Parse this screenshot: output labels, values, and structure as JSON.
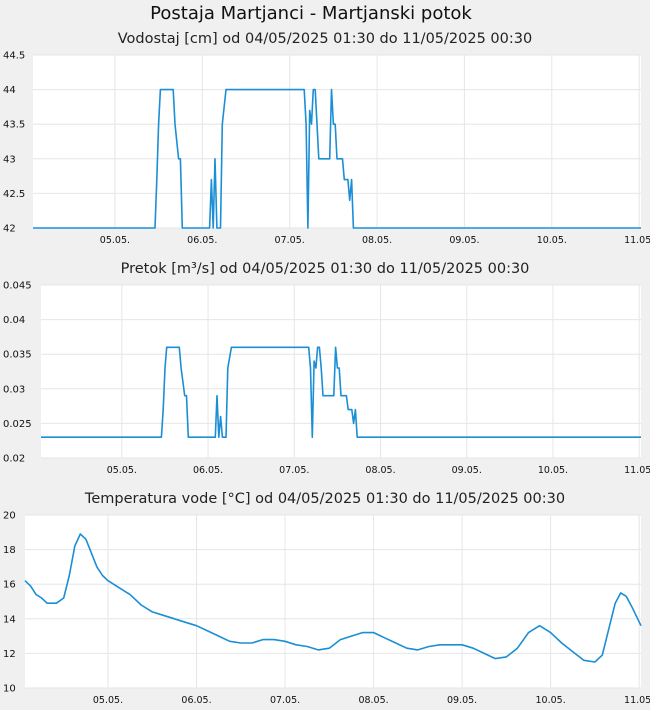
{
  "page": {
    "title": "Postaja Martjanci - Martjanski potok"
  },
  "colors": {
    "line": "#1a8fd6",
    "grid": "#e6e6e6",
    "plot_bg": "#ffffff",
    "page_bg": "#f0f0f0"
  },
  "chart_data": [
    {
      "id": "vodostaj",
      "type": "line",
      "title": "Vodostaj [cm] od 04/05/2025 01:30 do 11/05/2025 00:30",
      "xlabel": "",
      "ylabel": "",
      "x_ticks": [
        "05.05.",
        "06.05.",
        "07.05.",
        "08.05.",
        "09.05.",
        "10.05.",
        "11.05."
      ],
      "xlim": [
        "2025-05-04 01:30",
        "2025-05-11 00:30"
      ],
      "y_ticks": [
        "42",
        "42.5",
        "43",
        "43.5",
        "44",
        "44.5"
      ],
      "ylim": [
        42,
        44.5
      ],
      "grid": true,
      "series": [
        {
          "x": [
            "2025-05-04 01:30",
            "2025-05-05 11:00",
            "2025-05-05 11:30",
            "2025-05-05 12:00",
            "2025-05-05 12:30",
            "2025-05-05 13:00",
            "2025-05-05 13:30",
            "2025-05-05 16:00",
            "2025-05-05 16:30",
            "2025-05-05 17:30",
            "2025-05-05 18:00",
            "2025-05-05 18:30",
            "2025-05-06 02:00",
            "2025-05-06 02:30",
            "2025-05-06 03:00",
            "2025-05-06 03:30",
            "2025-05-06 04:00",
            "2025-05-06 05:00",
            "2025-05-06 05:30",
            "2025-05-06 06:30",
            "2025-05-06 07:00",
            "2025-05-06 07:30",
            "2025-05-06 08:00",
            "2025-05-07 04:00",
            "2025-05-07 04:30",
            "2025-05-07 05:00",
            "2025-05-07 05:30",
            "2025-05-07 06:00",
            "2025-05-07 06:30",
            "2025-05-07 07:00",
            "2025-05-07 07:30",
            "2025-05-07 08:00",
            "2025-05-07 08:30",
            "2025-05-07 09:00",
            "2025-05-07 11:00",
            "2025-05-07 11:30",
            "2025-05-07 12:00",
            "2025-05-07 12:30",
            "2025-05-07 13:00",
            "2025-05-07 13:30",
            "2025-05-07 14:00",
            "2025-05-07 14:30",
            "2025-05-07 15:00",
            "2025-05-07 16:00",
            "2025-05-07 16:30",
            "2025-05-07 17:00",
            "2025-05-07 17:30",
            "2025-05-07 18:00",
            "2025-05-07 18:30",
            "2025-05-07 19:00",
            "2025-05-11 00:30"
          ],
          "y": [
            42,
            42,
            42.7,
            43.5,
            44,
            44,
            44,
            44,
            43.5,
            43,
            43,
            42,
            42,
            42.7,
            42,
            43,
            42,
            42,
            43.5,
            44,
            44,
            44,
            44,
            44,
            43.5,
            42,
            43.7,
            43.5,
            44,
            44,
            43.5,
            43,
            43,
            43,
            43,
            44,
            43.5,
            43.5,
            43,
            43,
            43,
            43,
            42.7,
            42.7,
            42.4,
            42.7,
            42,
            42,
            42,
            42,
            42
          ]
        }
      ]
    },
    {
      "id": "pretok",
      "type": "line",
      "title": "Pretok [m³/s] od 04/05/2025 01:30 do 11/05/2025 00:30",
      "xlabel": "",
      "ylabel": "",
      "x_ticks": [
        "05.05.",
        "06.05.",
        "07.05.",
        "08.05.",
        "09.05.",
        "10.05.",
        "11.05."
      ],
      "xlim": [
        "2025-05-04 01:30",
        "2025-05-11 00:30"
      ],
      "y_ticks": [
        "0.02",
        "0.025",
        "0.03",
        "0.035",
        "0.04",
        "0.045"
      ],
      "ylim": [
        0.02,
        0.045
      ],
      "grid": true,
      "series": [
        {
          "x": [
            "2025-05-04 01:30",
            "2025-05-05 11:00",
            "2025-05-05 11:30",
            "2025-05-05 12:00",
            "2025-05-05 12:30",
            "2025-05-05 13:00",
            "2025-05-05 13:30",
            "2025-05-05 16:00",
            "2025-05-05 16:30",
            "2025-05-05 17:30",
            "2025-05-05 18:00",
            "2025-05-05 18:30",
            "2025-05-06 02:00",
            "2025-05-06 02:30",
            "2025-05-06 03:00",
            "2025-05-06 03:30",
            "2025-05-06 04:00",
            "2025-05-06 05:00",
            "2025-05-06 05:30",
            "2025-05-06 06:30",
            "2025-05-06 07:00",
            "2025-05-06 07:30",
            "2025-05-06 08:00",
            "2025-05-07 04:00",
            "2025-05-07 04:30",
            "2025-05-07 05:00",
            "2025-05-07 05:30",
            "2025-05-07 06:00",
            "2025-05-07 06:30",
            "2025-05-07 07:00",
            "2025-05-07 07:30",
            "2025-05-07 08:00",
            "2025-05-07 08:30",
            "2025-05-07 09:00",
            "2025-05-07 11:00",
            "2025-05-07 11:30",
            "2025-05-07 12:00",
            "2025-05-07 12:30",
            "2025-05-07 13:00",
            "2025-05-07 13:30",
            "2025-05-07 14:00",
            "2025-05-07 14:30",
            "2025-05-07 15:00",
            "2025-05-07 16:00",
            "2025-05-07 16:30",
            "2025-05-07 17:00",
            "2025-05-07 17:30",
            "2025-05-07 18:00",
            "2025-05-07 18:30",
            "2025-05-07 19:00",
            "2025-05-11 00:30"
          ],
          "y": [
            0.023,
            0.023,
            0.027,
            0.033,
            0.036,
            0.036,
            0.036,
            0.036,
            0.033,
            0.029,
            0.029,
            0.023,
            0.023,
            0.029,
            0.023,
            0.026,
            0.023,
            0.023,
            0.033,
            0.036,
            0.036,
            0.036,
            0.036,
            0.036,
            0.033,
            0.023,
            0.034,
            0.033,
            0.036,
            0.036,
            0.033,
            0.029,
            0.029,
            0.029,
            0.029,
            0.036,
            0.033,
            0.033,
            0.029,
            0.029,
            0.029,
            0.029,
            0.027,
            0.027,
            0.025,
            0.027,
            0.023,
            0.023,
            0.023,
            0.023,
            0.023
          ]
        }
      ]
    },
    {
      "id": "temperatura",
      "type": "line",
      "title": "Temperatura vode [°C] od 04/05/2025 01:30 do 11/05/2025 00:30",
      "xlabel": "",
      "ylabel": "",
      "x_ticks": [
        "05.05.",
        "06.05.",
        "07.05.",
        "08.05.",
        "09.05.",
        "10.05.",
        "11.05."
      ],
      "xlim": [
        "2025-05-04 01:30",
        "2025-05-11 00:30"
      ],
      "y_ticks": [
        "10",
        "12",
        "14",
        "16",
        "18",
        "20"
      ],
      "ylim": [
        10,
        20
      ],
      "grid": true,
      "series": [
        {
          "x": [
            "2025-05-04 01:30",
            "2025-05-04 03:00",
            "2025-05-04 04:30",
            "2025-05-04 06:00",
            "2025-05-04 07:30",
            "2025-05-04 10:00",
            "2025-05-04 12:00",
            "2025-05-04 13:30",
            "2025-05-04 15:00",
            "2025-05-04 16:30",
            "2025-05-04 18:00",
            "2025-05-04 19:30",
            "2025-05-04 21:00",
            "2025-05-04 22:30",
            "2025-05-05 00:00",
            "2025-05-05 03:00",
            "2025-05-05 06:00",
            "2025-05-05 09:00",
            "2025-05-05 12:00",
            "2025-05-05 15:00",
            "2025-05-05 18:00",
            "2025-05-05 21:00",
            "2025-05-06 00:00",
            "2025-05-06 03:00",
            "2025-05-06 06:00",
            "2025-05-06 09:00",
            "2025-05-06 12:00",
            "2025-05-06 15:00",
            "2025-05-06 18:00",
            "2025-05-06 21:00",
            "2025-05-07 00:00",
            "2025-05-07 03:00",
            "2025-05-07 06:00",
            "2025-05-07 09:00",
            "2025-05-07 12:00",
            "2025-05-07 15:00",
            "2025-05-07 18:00",
            "2025-05-07 21:00",
            "2025-05-08 00:00",
            "2025-05-08 03:00",
            "2025-05-08 06:00",
            "2025-05-08 09:00",
            "2025-05-08 12:00",
            "2025-05-08 15:00",
            "2025-05-08 18:00",
            "2025-05-08 21:00",
            "2025-05-09 00:00",
            "2025-05-09 03:00",
            "2025-05-09 06:00",
            "2025-05-09 09:00",
            "2025-05-09 12:00",
            "2025-05-09 15:00",
            "2025-05-09 18:00",
            "2025-05-09 21:00",
            "2025-05-10 00:00",
            "2025-05-10 03:00",
            "2025-05-10 06:00",
            "2025-05-10 09:00",
            "2025-05-10 12:00",
            "2025-05-10 14:00",
            "2025-05-10 16:00",
            "2025-05-10 17:30",
            "2025-05-10 19:00",
            "2025-05-10 20:30",
            "2025-05-10 22:00",
            "2025-05-11 00:30"
          ],
          "y": [
            16.2,
            15.9,
            15.4,
            15.2,
            14.9,
            14.9,
            15.2,
            16.5,
            18.2,
            18.9,
            18.6,
            17.8,
            17.0,
            16.5,
            16.2,
            15.8,
            15.4,
            14.8,
            14.4,
            14.2,
            14.0,
            13.8,
            13.6,
            13.3,
            13.0,
            12.7,
            12.6,
            12.6,
            12.8,
            12.8,
            12.7,
            12.5,
            12.4,
            12.2,
            12.3,
            12.8,
            13.0,
            13.2,
            13.2,
            12.9,
            12.6,
            12.3,
            12.2,
            12.4,
            12.5,
            12.5,
            12.5,
            12.3,
            12.0,
            11.7,
            11.8,
            12.3,
            13.2,
            13.6,
            13.2,
            12.6,
            12.1,
            11.6,
            11.5,
            11.9,
            13.6,
            14.9,
            15.5,
            15.3,
            14.7,
            13.6
          ]
        }
      ]
    }
  ]
}
